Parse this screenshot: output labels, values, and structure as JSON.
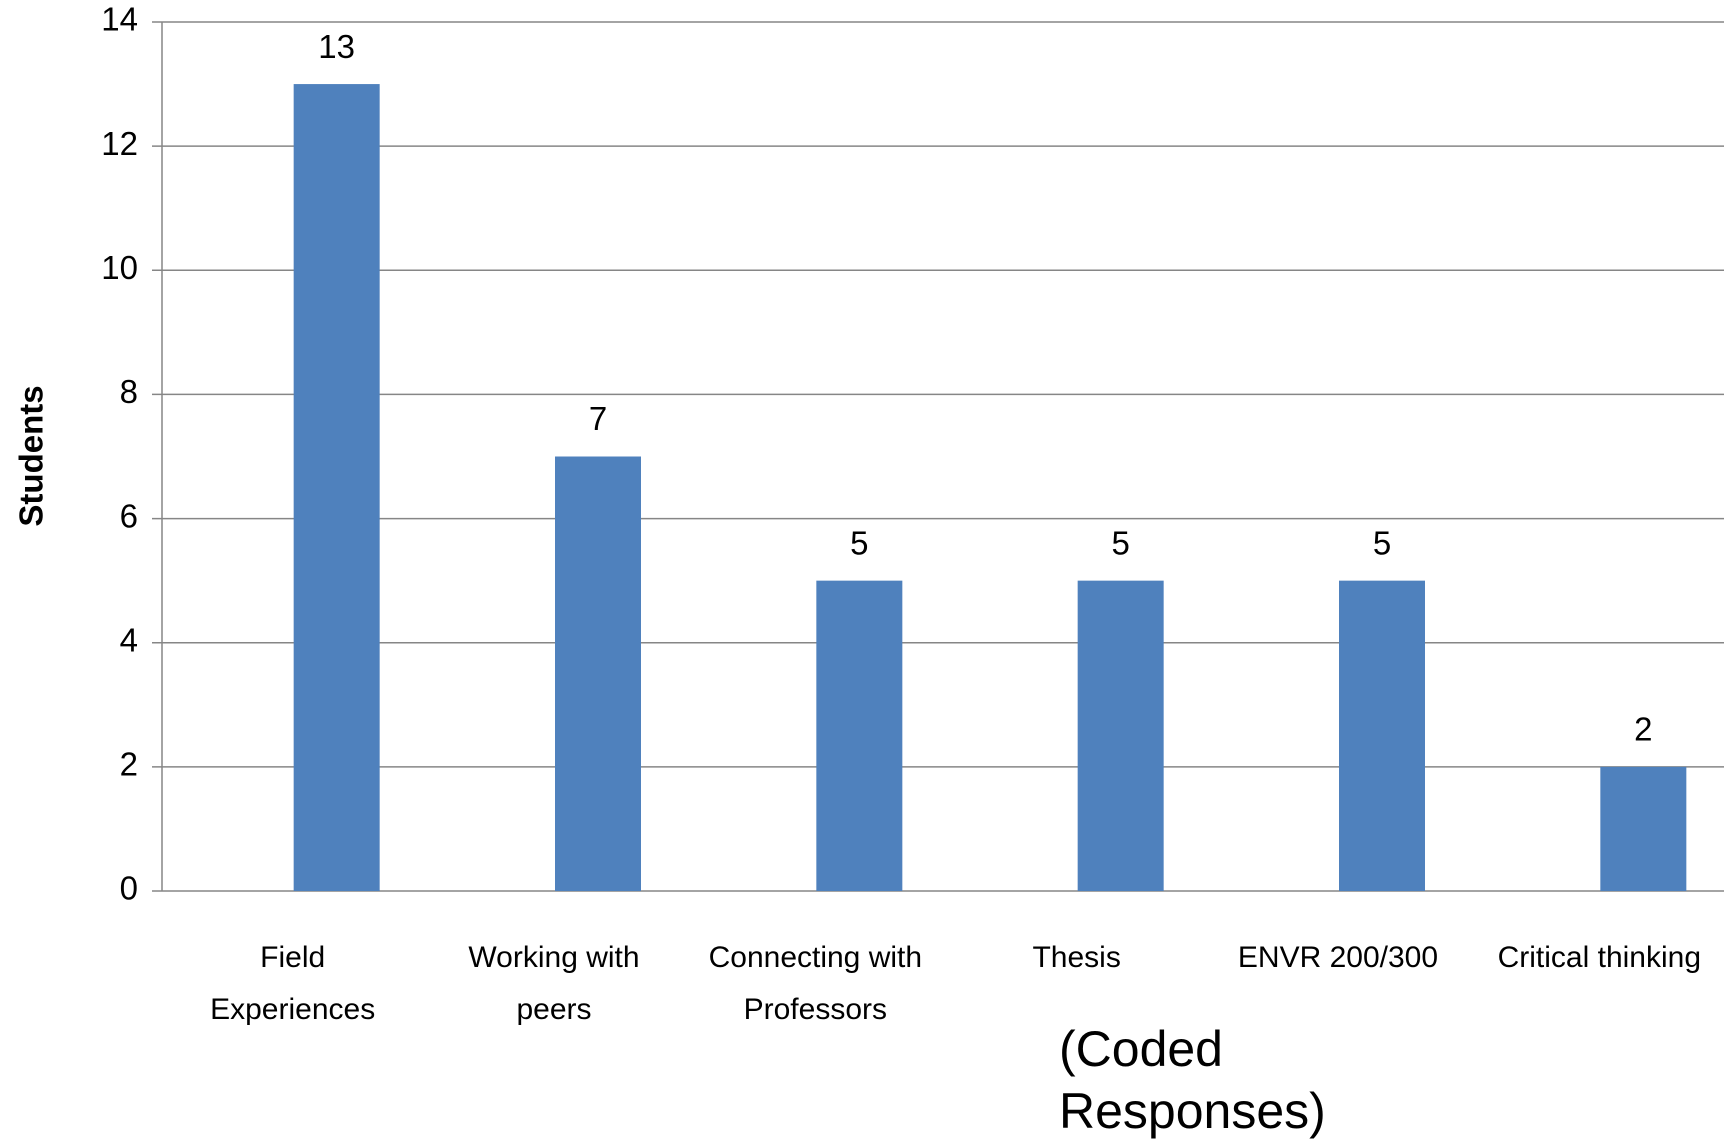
{
  "chart_data": {
    "type": "bar",
    "categories": [
      "Field Experiences",
      "Working with peers",
      "Connecting with Professors",
      "Thesis",
      "ENVR 200/300",
      "Critical thinking"
    ],
    "values": [
      13,
      7,
      5,
      5,
      5,
      2
    ],
    "color": "#4f81bd",
    "y_label": "Students",
    "x_label": "(Coded Responses)",
    "ylim": [
      0,
      14
    ],
    "yticks": [
      0,
      2,
      4,
      6,
      8,
      10,
      12,
      14
    ],
    "grid": true
  }
}
